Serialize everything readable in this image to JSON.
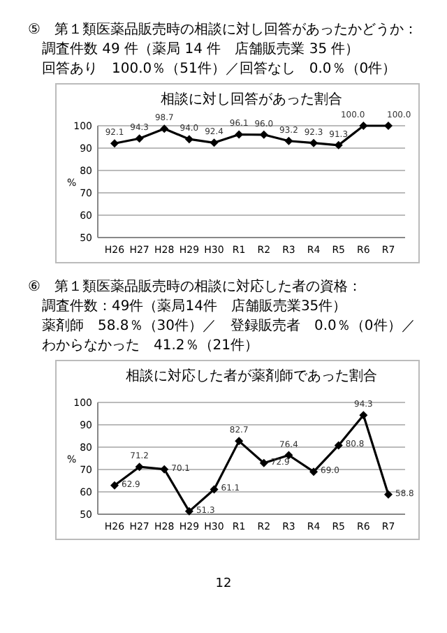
{
  "chart_data": [
    {
      "type": "line",
      "title": "相談に対し回答があった割合",
      "ylabel": "%",
      "annotations": [
        "⑤　第１類医薬品販売時の相談に対し回答があったかどうか：",
        "調査件数 49 件（薬局 14 件　店舗販売業 35 件）",
        "回答あり　100.0％（51件）／回答なし　0.0％（0件）"
      ],
      "categories": [
        "H26",
        "H27",
        "H28",
        "H29",
        "H30",
        "R1",
        "R2",
        "R3",
        "R4",
        "R5",
        "R6",
        "R7"
      ],
      "series": [
        {
          "color": "#000000",
          "values": [
            92.1,
            94.3,
            98.7,
            94.0,
            92.4,
            96.1,
            96.0,
            93.2,
            92.3,
            91.3,
            100.0,
            100.0
          ],
          "value_labels": [
            "92.1",
            "94.3",
            "98.7",
            "94.0",
            "92.4",
            "96.1",
            "96.0",
            "93.2",
            "92.3",
            "91.3",
            "100.0",
            "100.0"
          ]
        }
      ],
      "ylim": [
        50,
        100
      ],
      "yticks": [
        50,
        60,
        70,
        80,
        90,
        100
      ],
      "grid": "y",
      "marker": "diamond",
      "line_style": "solid"
    },
    {
      "type": "line",
      "title": "相談に対応した者が薬剤師であった割合",
      "ylabel": "%",
      "annotations": [
        "⑥　第１類医薬品販売時の相談に対応した者の資格：",
        "調査件数：49件（薬局14件　店舗販売業35件）",
        "薬剤師　58.8％（30件）／　登録販売者　0.0％（0件）／",
        "わからなかった　41.2％（21件）",
        "12"
      ],
      "categories": [
        "H26",
        "H27",
        "H28",
        "H29",
        "H30",
        "R1",
        "R2",
        "R3",
        "R4",
        "R5",
        "R6",
        "R7"
      ],
      "series": [
        {
          "color": "#000000",
          "values": [
            62.9,
            71.2,
            70.1,
            51.3,
            61.1,
            82.7,
            72.9,
            76.4,
            69.0,
            80.8,
            94.3,
            58.8
          ],
          "value_labels": [
            "62.9",
            "71.2",
            "70.1",
            "51.3",
            "61.1",
            "82.7",
            "72.9",
            "76.4",
            "69.0",
            "80.8",
            "94.3",
            "58.8"
          ]
        }
      ],
      "ylim": [
        50,
        100
      ],
      "yticks": [
        50,
        60,
        70,
        80,
        90,
        100
      ],
      "grid": "y",
      "marker": "diamond",
      "line_style": "solid"
    }
  ]
}
